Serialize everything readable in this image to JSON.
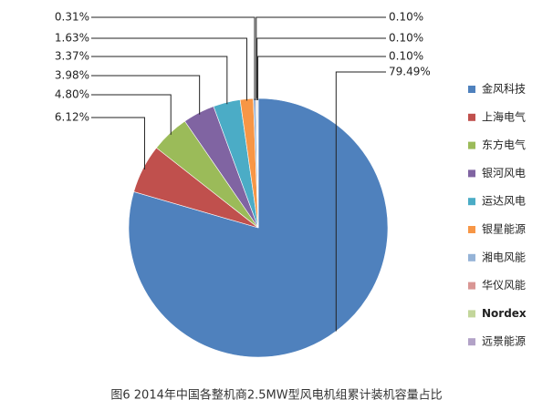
{
  "chart_data": {
    "type": "pie",
    "categories": [
      "金风科技",
      "上海电气",
      "东方电气",
      "银河风电",
      "运达风电",
      "银星能源",
      "湘电风能",
      "华仪风能",
      "Nordex",
      "远景能源"
    ],
    "values": [
      79.49,
      6.12,
      4.8,
      3.98,
      3.37,
      1.63,
      0.31,
      0.1,
      0.1,
      0.1
    ],
    "value_labels": [
      "79.49%",
      "6.12%",
      "4.80%",
      "3.98%",
      "3.37%",
      "1.63%",
      "0.31%",
      "0.10%",
      "0.10%",
      "0.10%"
    ],
    "colors": [
      "#4f81bd",
      "#c0504d",
      "#9bbb59",
      "#8064a2",
      "#4bacc6",
      "#f79646",
      "#95b3d7",
      "#d99694",
      "#c3d69b",
      "#b2a2c7"
    ],
    "legend": "right",
    "caption": "图6 2014年中国各整机商2.5MW型风电机组累计装机容量占比"
  }
}
